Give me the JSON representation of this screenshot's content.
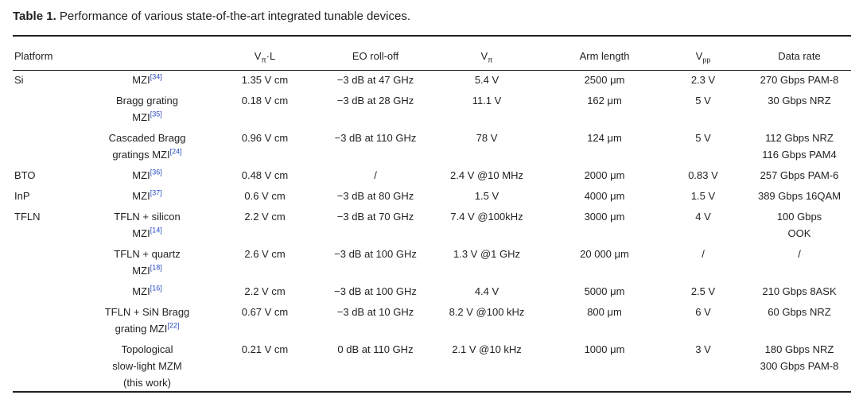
{
  "title": {
    "label": "Table 1.",
    "text": " Performance of various state-of-the-art integrated tunable devices."
  },
  "table": {
    "headers": [
      {
        "text": "Platform"
      },
      {
        "main": "V",
        "sub": "π",
        "rest": "·L"
      },
      {
        "text": "EO roll-off"
      },
      {
        "main": "V",
        "sub": "π"
      },
      {
        "text": "Arm length"
      },
      {
        "main": "V",
        "sub": "pp"
      },
      {
        "text": "Data rate"
      }
    ],
    "rows": [
      {
        "platform": "Si",
        "device": {
          "lines": [
            "MZI"
          ],
          "ref": "[34]"
        },
        "cells": [
          "1.35 V cm",
          "−3 dB at 47 GHz",
          "5.4 V",
          "2500 μm",
          "2.3 V",
          [
            "270 Gbps PAM-8"
          ]
        ]
      },
      {
        "device": {
          "lines": [
            "Bragg grating",
            "MZI"
          ],
          "ref": "[35]"
        },
        "cells": [
          "0.18 V cm",
          "−3 dB at 28 GHz",
          "11.1 V",
          "162 μm",
          "5 V",
          [
            "30 Gbps NRZ"
          ]
        ]
      },
      {
        "device": {
          "lines": [
            "Cascaded Bragg",
            "gratings MZI"
          ],
          "ref": "[24]"
        },
        "cells": [
          "0.96 V cm",
          "−3 dB at 110 GHz",
          "78 V",
          "124 μm",
          "5 V",
          [
            "112 Gbps NRZ",
            "116 Gbps PAM4"
          ]
        ]
      },
      {
        "platform": "BTO",
        "device": {
          "lines": [
            "MZI"
          ],
          "ref": "[36]"
        },
        "cells": [
          "0.48 V cm",
          "/",
          "2.4 V @10 MHz",
          "2000 μm",
          "0.83 V",
          [
            "257 Gbps PAM-6"
          ]
        ]
      },
      {
        "platform": "InP",
        "device": {
          "lines": [
            "MZI"
          ],
          "ref": "[37]"
        },
        "cells": [
          "0.6 V cm",
          "−3 dB at 80 GHz",
          "1.5 V",
          "4000 μm",
          "1.5 V",
          [
            "389 Gbps 16QAM"
          ]
        ]
      },
      {
        "platform": "TFLN",
        "device": {
          "lines": [
            "TFLN + silicon",
            "MZI"
          ],
          "ref": "[14]"
        },
        "cells": [
          "2.2 V cm",
          "−3 dB at 70 GHz",
          "7.4 V @100kHz",
          "3000 μm",
          "4 V",
          [
            "100 Gbps",
            "OOK"
          ]
        ]
      },
      {
        "device": {
          "lines": [
            "TFLN + quartz",
            "MZI"
          ],
          "ref": "[18]"
        },
        "cells": [
          "2.6 V cm",
          "−3 dB at 100 GHz",
          "1.3 V @1 GHz",
          "20 000 μm",
          "/",
          [
            "/"
          ]
        ]
      },
      {
        "device": {
          "lines": [
            "MZI"
          ],
          "ref": "[16]"
        },
        "cells": [
          "2.2 V cm",
          "−3 dB at 100 GHz",
          "4.4 V",
          "5000 μm",
          "2.5 V",
          [
            "210 Gbps 8ASK"
          ]
        ]
      },
      {
        "device": {
          "lines": [
            "TFLN + SiN Bragg",
            "grating MZI"
          ],
          "ref": "[22]"
        },
        "cells": [
          "0.67 V cm",
          "−3 dB at 10 GHz",
          "8.2 V @100 kHz",
          "800 μm",
          "6 V",
          [
            "60 Gbps NRZ"
          ]
        ]
      },
      {
        "device": {
          "lines": [
            "Topological",
            "slow-light MZM",
            "(this work)"
          ]
        },
        "cells": [
          "0.21 V cm",
          "0 dB at 110 GHz",
          "2.1 V @10 kHz",
          "1000 μm",
          "3 V",
          [
            "180 Gbps NRZ",
            "300 Gbps PAM-8"
          ]
        ]
      }
    ]
  }
}
